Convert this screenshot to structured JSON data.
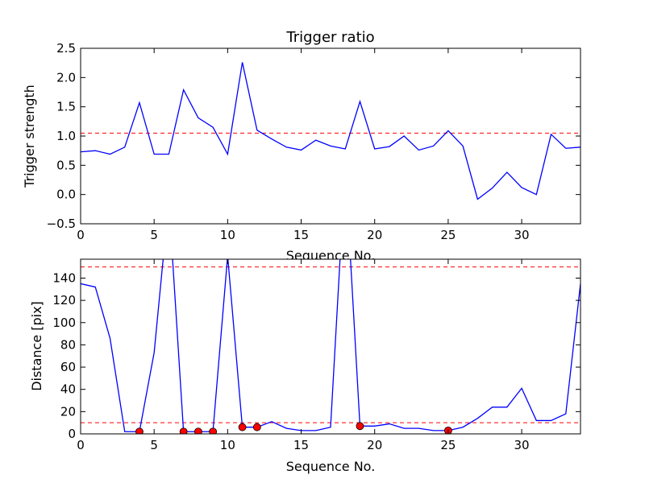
{
  "chart_data": [
    {
      "type": "line",
      "title": "Trigger ratio",
      "xlabel": "Sequence No.",
      "ylabel": "Trigger strength",
      "xlim": [
        0,
        34
      ],
      "ylim": [
        -0.5,
        2.5
      ],
      "xticks": [
        0,
        5,
        10,
        15,
        20,
        25,
        30
      ],
      "yticks": [
        -0.5,
        0.0,
        0.5,
        1.0,
        1.5,
        2.0,
        2.5
      ],
      "xtick_labels": [
        "0",
        "5",
        "10",
        "15",
        "20",
        "25",
        "30"
      ],
      "ytick_labels": [
        "−0.5",
        "0.0",
        "0.5",
        "1.0",
        "1.5",
        "2.0",
        "2.5"
      ],
      "grid": false,
      "series": [
        {
          "color": "#0000ff",
          "x": [
            0,
            1,
            2,
            3,
            4,
            5,
            6,
            7,
            8,
            9,
            10,
            11,
            12,
            13,
            14,
            15,
            16,
            17,
            18,
            19,
            20,
            21,
            22,
            23,
            24,
            25,
            26,
            27,
            28,
            29,
            30,
            31,
            32,
            33,
            34
          ],
          "values": [
            0.73,
            0.75,
            0.69,
            0.81,
            1.57,
            0.69,
            0.69,
            1.79,
            1.31,
            1.15,
            0.69,
            2.26,
            1.1,
            0.95,
            0.81,
            0.76,
            0.93,
            0.83,
            0.78,
            1.59,
            0.78,
            0.82,
            1.0,
            0.76,
            0.83,
            1.09,
            0.83,
            -0.08,
            0.11,
            0.38,
            0.12,
            0.0,
            1.03,
            0.79,
            0.81
          ]
        }
      ],
      "hlines": [
        {
          "y": 1.05,
          "color": "#ff0000",
          "style": "dashed"
        }
      ]
    },
    {
      "type": "line",
      "title": "",
      "xlabel": "Sequence No.",
      "ylabel": "Distance [pix]",
      "xlim": [
        0,
        34
      ],
      "ylim": [
        0,
        157
      ],
      "xticks": [
        0,
        5,
        10,
        15,
        20,
        25,
        30
      ],
      "yticks": [
        0,
        20,
        40,
        60,
        80,
        100,
        120,
        140
      ],
      "xtick_labels": [
        "0",
        "5",
        "10",
        "15",
        "20",
        "25",
        "30"
      ],
      "ytick_labels": [
        "0",
        "20",
        "40",
        "60",
        "80",
        "100",
        "120",
        "140"
      ],
      "grid": false,
      "series": [
        {
          "color": "#0000ff",
          "x": [
            0,
            1,
            2,
            3,
            4,
            5,
            6,
            7,
            8,
            9,
            10,
            11,
            12,
            13,
            14,
            15,
            16,
            17,
            18,
            19,
            20,
            21,
            22,
            23,
            24,
            25,
            26,
            27,
            28,
            29,
            30,
            31,
            32,
            33,
            34
          ],
          "values": [
            135,
            132,
            86,
            2,
            2,
            73,
            210,
            2,
            2,
            2,
            160,
            6,
            6,
            11,
            5,
            3,
            3,
            6,
            240,
            7,
            7,
            9,
            5,
            5,
            3,
            3,
            6,
            14,
            24,
            24,
            41,
            12,
            12,
            18,
            135
          ]
        },
        {
          "type": "scatter",
          "color": "#ff0000",
          "x": [
            4,
            7,
            8,
            9,
            11,
            12,
            19,
            25
          ],
          "values": [
            2,
            2,
            2,
            2,
            6,
            6,
            7,
            3
          ]
        }
      ],
      "hlines": [
        {
          "y": 150,
          "color": "#ff0000",
          "style": "dashed"
        },
        {
          "y": 10,
          "color": "#ff0000",
          "style": "dashed"
        }
      ]
    }
  ]
}
